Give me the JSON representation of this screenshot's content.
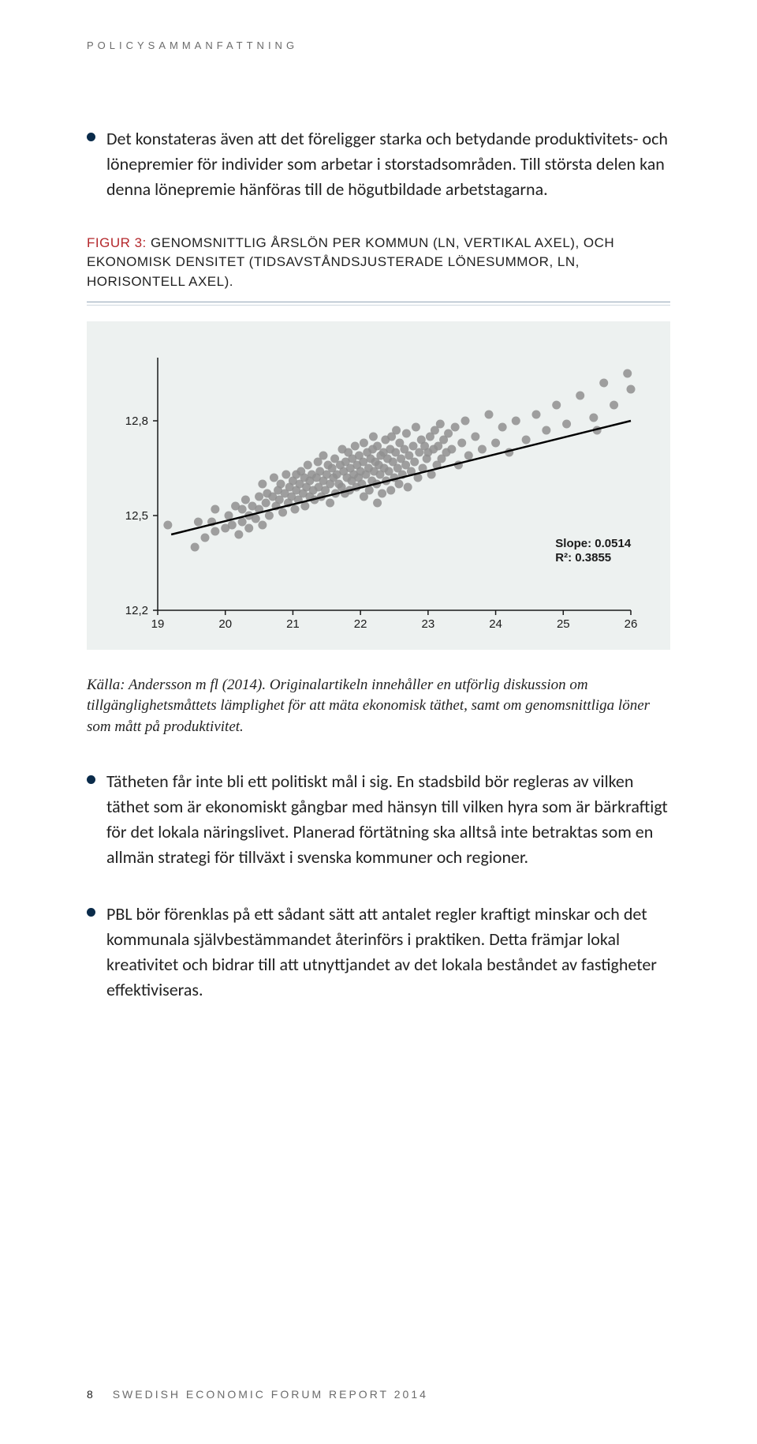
{
  "running_head": "POLICYSAMMANFATTNING",
  "bullets": {
    "b1": "Det konstateras även att det föreligger starka och betydande produktivitets- och lönepremier för individer som arbetar i storstadsområden. Till största delen kan denna lönepremie hänföras till de högutbildade arbetstagarna.",
    "b2": "Tätheten får inte bli ett politiskt mål i sig. En stadsbild bör regleras av vilken täthet som är ekonomiskt gångbar med hänsyn till vilken hyra som är bärkraftigt för det lokala näringslivet. Planerad förtätning ska alltså inte betraktas som en allmän strategi för tillväxt i svenska kommuner och regioner.",
    "b3": "PBL bör förenklas på ett sådant sätt att antalet regler kraftigt minskar och det kommunala självbestämmandet återinförs i praktiken. Detta främjar lokal kreativitet och bidrar till att utnyttjandet av det lokala beståndet av fastigheter effektiviseras."
  },
  "figure": {
    "lead": "FIGUR 3:",
    "title_rest": " GENOMSNITTLIG ÅRSLÖN PER KOMMUN (LN, VERTIKAL AXEL), OCH EKONOMISK DENSITET (TIDSAVSTÅNDSJUSTERADE LÖNESUMMOR, LN, HORISONTELL AXEL)."
  },
  "chart": {
    "type": "scatter",
    "background_color": "#edf1f0",
    "axis_color": "#1a1a1a",
    "point_color": "#8f8f8f",
    "reg_line_color": "#000000",
    "tick_font_size": 15,
    "annotation_font_size": 15,
    "xlim": [
      19,
      26
    ],
    "ylim": [
      12.2,
      13.0
    ],
    "xticks": [
      19,
      20,
      21,
      22,
      23,
      24,
      25,
      26
    ],
    "yticks": [
      12.2,
      12.5,
      12.8
    ],
    "ytick_labels": [
      "12,2",
      "12,5",
      "12,8"
    ],
    "slope_label": "Slope: 0.0514",
    "r2_label": "R²: 0.3855",
    "reg_line": {
      "x1": 19.2,
      "y1": 12.44,
      "x2": 26.0,
      "y2": 12.8
    },
    "points": [
      [
        19.15,
        12.47
      ],
      [
        19.55,
        12.4
      ],
      [
        19.6,
        12.48
      ],
      [
        19.7,
        12.43
      ],
      [
        19.8,
        12.48
      ],
      [
        19.85,
        12.45
      ],
      [
        19.85,
        12.52
      ],
      [
        20.0,
        12.46
      ],
      [
        20.05,
        12.5
      ],
      [
        20.1,
        12.47
      ],
      [
        20.15,
        12.53
      ],
      [
        20.2,
        12.44
      ],
      [
        20.25,
        12.52
      ],
      [
        20.25,
        12.48
      ],
      [
        20.3,
        12.55
      ],
      [
        20.35,
        12.5
      ],
      [
        20.35,
        12.46
      ],
      [
        20.4,
        12.53
      ],
      [
        20.45,
        12.49
      ],
      [
        20.5,
        12.56
      ],
      [
        20.5,
        12.52
      ],
      [
        20.55,
        12.47
      ],
      [
        20.55,
        12.6
      ],
      [
        20.6,
        12.54
      ],
      [
        20.62,
        12.57
      ],
      [
        20.65,
        12.5
      ],
      [
        20.7,
        12.56
      ],
      [
        20.72,
        12.62
      ],
      [
        20.75,
        12.53
      ],
      [
        20.78,
        12.58
      ],
      [
        20.8,
        12.55
      ],
      [
        20.82,
        12.6
      ],
      [
        20.85,
        12.51
      ],
      [
        20.88,
        12.57
      ],
      [
        20.9,
        12.63
      ],
      [
        20.93,
        12.54
      ],
      [
        20.95,
        12.59
      ],
      [
        20.98,
        12.56
      ],
      [
        21.0,
        12.61
      ],
      [
        21.03,
        12.52
      ],
      [
        21.05,
        12.63
      ],
      [
        21.05,
        12.58
      ],
      [
        21.08,
        12.55
      ],
      [
        21.1,
        12.6
      ],
      [
        21.12,
        12.64
      ],
      [
        21.15,
        12.57
      ],
      [
        21.17,
        12.62
      ],
      [
        21.18,
        12.53
      ],
      [
        21.2,
        12.59
      ],
      [
        21.22,
        12.66
      ],
      [
        21.25,
        12.56
      ],
      [
        21.25,
        12.61
      ],
      [
        21.28,
        12.63
      ],
      [
        21.3,
        12.58
      ],
      [
        21.32,
        12.55
      ],
      [
        21.35,
        12.62
      ],
      [
        21.37,
        12.67
      ],
      [
        21.38,
        12.59
      ],
      [
        21.4,
        12.64
      ],
      [
        21.42,
        12.56
      ],
      [
        21.45,
        12.61
      ],
      [
        21.45,
        12.69
      ],
      [
        21.48,
        12.58
      ],
      [
        21.5,
        12.63
      ],
      [
        21.52,
        12.66
      ],
      [
        21.55,
        12.6
      ],
      [
        21.55,
        12.54
      ],
      [
        21.58,
        12.65
      ],
      [
        21.6,
        12.62
      ],
      [
        21.62,
        12.68
      ],
      [
        21.63,
        12.57
      ],
      [
        21.65,
        12.63
      ],
      [
        21.68,
        12.6
      ],
      [
        21.7,
        12.66
      ],
      [
        21.72,
        12.59
      ],
      [
        21.73,
        12.71
      ],
      [
        21.75,
        12.64
      ],
      [
        21.77,
        12.57
      ],
      [
        21.78,
        12.67
      ],
      [
        21.8,
        12.62
      ],
      [
        21.82,
        12.7
      ],
      [
        21.84,
        12.58
      ],
      [
        21.85,
        12.65
      ],
      [
        21.87,
        12.61
      ],
      [
        21.88,
        12.68
      ],
      [
        21.9,
        12.63
      ],
      [
        21.92,
        12.72
      ],
      [
        21.94,
        12.59
      ],
      [
        21.95,
        12.66
      ],
      [
        21.97,
        12.62
      ],
      [
        21.98,
        12.69
      ],
      [
        22.0,
        12.64
      ],
      [
        22.02,
        12.6
      ],
      [
        22.04,
        12.67
      ],
      [
        22.05,
        12.56
      ],
      [
        22.05,
        12.73
      ],
      [
        22.08,
        12.63
      ],
      [
        22.1,
        12.7
      ],
      [
        22.12,
        12.65
      ],
      [
        22.13,
        12.58
      ],
      [
        22.15,
        12.68
      ],
      [
        22.17,
        12.61
      ],
      [
        22.18,
        12.71
      ],
      [
        22.19,
        12.75
      ],
      [
        22.2,
        12.64
      ],
      [
        22.22,
        12.67
      ],
      [
        22.24,
        12.6
      ],
      [
        22.25,
        12.72
      ],
      [
        22.25,
        12.54
      ],
      [
        22.27,
        12.66
      ],
      [
        22.29,
        12.63
      ],
      [
        22.3,
        12.69
      ],
      [
        22.32,
        12.57
      ],
      [
        22.34,
        12.7
      ],
      [
        22.35,
        12.65
      ],
      [
        22.37,
        12.74
      ],
      [
        22.38,
        12.61
      ],
      [
        22.4,
        12.68
      ],
      [
        22.42,
        12.64
      ],
      [
        22.44,
        12.71
      ],
      [
        22.45,
        12.58
      ],
      [
        22.46,
        12.75
      ],
      [
        22.48,
        12.67
      ],
      [
        22.5,
        12.62
      ],
      [
        22.52,
        12.7
      ],
      [
        22.53,
        12.77
      ],
      [
        22.55,
        12.65
      ],
      [
        22.57,
        12.6
      ],
      [
        22.58,
        12.73
      ],
      [
        22.6,
        12.68
      ],
      [
        22.62,
        12.63
      ],
      [
        22.65,
        12.71
      ],
      [
        22.67,
        12.66
      ],
      [
        22.68,
        12.76
      ],
      [
        22.7,
        12.59
      ],
      [
        22.72,
        12.69
      ],
      [
        22.75,
        12.64
      ],
      [
        22.78,
        12.72
      ],
      [
        22.8,
        12.67
      ],
      [
        22.82,
        12.78
      ],
      [
        22.85,
        12.62
      ],
      [
        22.87,
        12.7
      ],
      [
        22.9,
        12.74
      ],
      [
        22.92,
        12.65
      ],
      [
        22.95,
        12.72
      ],
      [
        22.98,
        12.68
      ],
      [
        23.0,
        12.7
      ],
      [
        23.03,
        12.75
      ],
      [
        23.05,
        12.63
      ],
      [
        23.08,
        12.71
      ],
      [
        23.1,
        12.77
      ],
      [
        23.13,
        12.66
      ],
      [
        23.15,
        12.72
      ],
      [
        23.18,
        12.79
      ],
      [
        23.2,
        12.68
      ],
      [
        23.23,
        12.74
      ],
      [
        23.27,
        12.7
      ],
      [
        23.3,
        12.76
      ],
      [
        23.35,
        12.71
      ],
      [
        23.4,
        12.78
      ],
      [
        23.45,
        12.66
      ],
      [
        23.5,
        12.73
      ],
      [
        23.55,
        12.8
      ],
      [
        23.6,
        12.69
      ],
      [
        23.7,
        12.75
      ],
      [
        23.8,
        12.71
      ],
      [
        23.9,
        12.82
      ],
      [
        24.0,
        12.73
      ],
      [
        24.1,
        12.78
      ],
      [
        24.2,
        12.7
      ],
      [
        24.3,
        12.8
      ],
      [
        24.45,
        12.74
      ],
      [
        24.6,
        12.82
      ],
      [
        24.75,
        12.77
      ],
      [
        24.9,
        12.85
      ],
      [
        25.05,
        12.79
      ],
      [
        25.25,
        12.88
      ],
      [
        25.45,
        12.81
      ],
      [
        25.5,
        12.77
      ],
      [
        25.6,
        12.92
      ],
      [
        25.75,
        12.85
      ],
      [
        25.95,
        12.95
      ],
      [
        26.0,
        12.9
      ]
    ]
  },
  "caption": "Källa: Andersson m fl (2014). Originalartikeln innehåller en utförlig diskussion om tillgänglighetsmåttets lämplighet för att mäta ekonomisk täthet, samt om genomsnittliga löner som mått på produktivitet.",
  "footer": {
    "page": "8",
    "line": "SWEDISH ECONOMIC FORUM REPORT 2014"
  },
  "colors": {
    "accent_red": "#b4282c",
    "bullet": "#0a2b4a",
    "text": "#2a2a2a",
    "muted": "#6b6b6b"
  }
}
